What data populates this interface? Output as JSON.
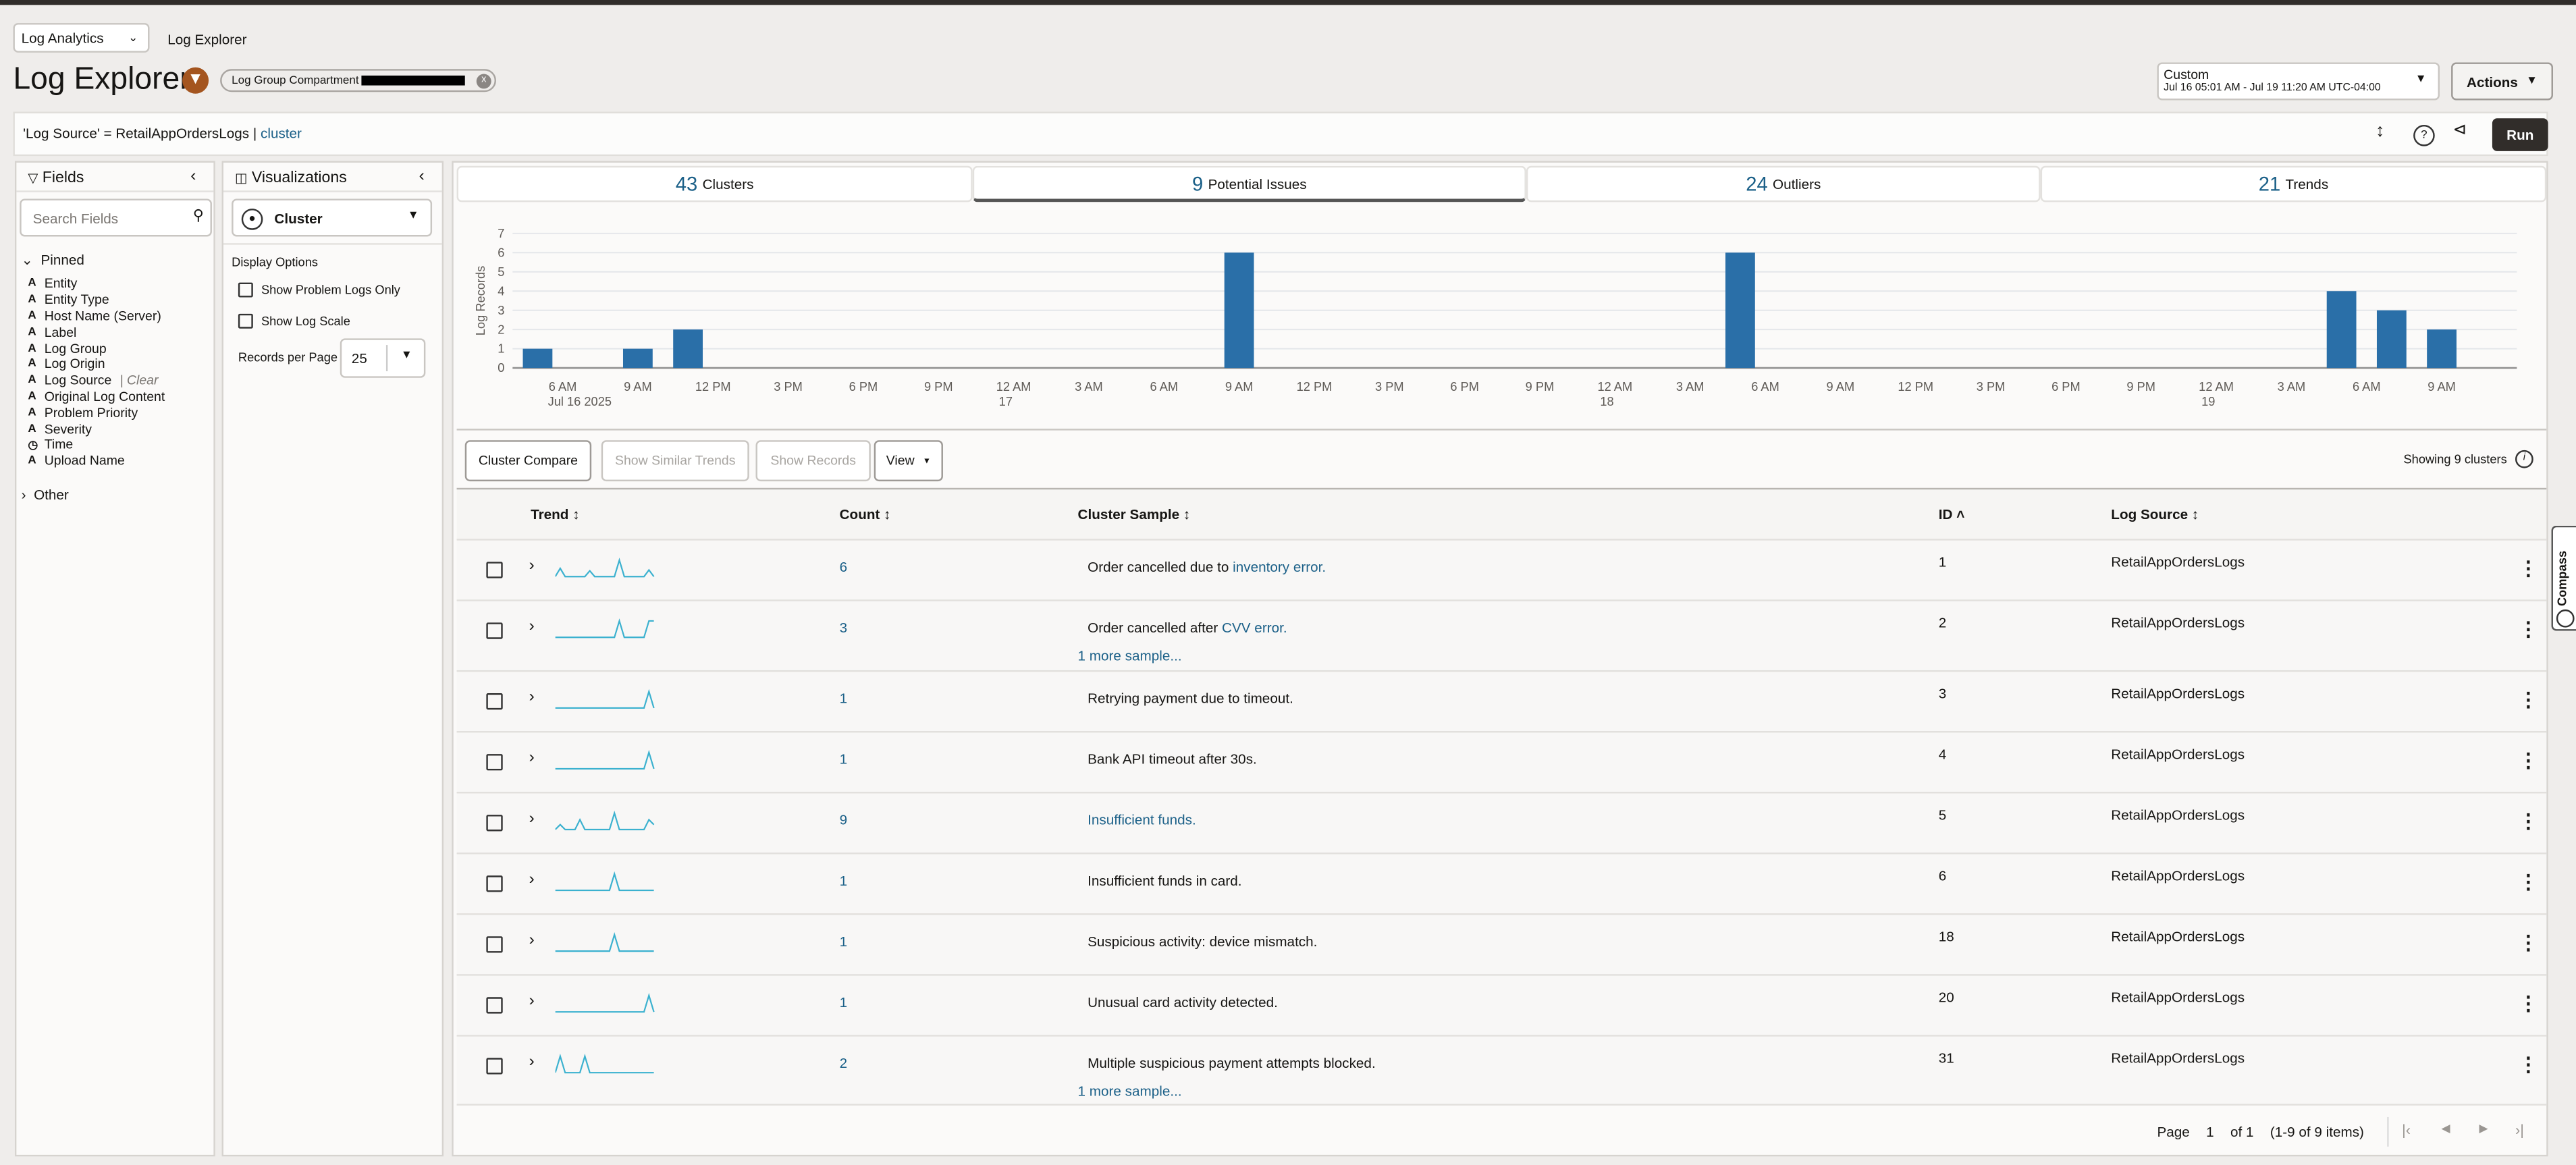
{
  "breadcrumb": {
    "app": "Log Analytics",
    "page": "Log Explorer"
  },
  "header": {
    "title": "Log Explorer",
    "chip_label": "Log Group Compartment"
  },
  "time_range": {
    "label": "Custom",
    "range": "Jul 16 05:01 AM - Jul 19 11:20 AM UTC-04:00"
  },
  "actions_label": "Actions",
  "query": {
    "text": "'Log Source' = RetailAppOrdersLogs | ",
    "command": "cluster"
  },
  "run_label": "Run",
  "fields": {
    "title": "Fields",
    "search_placeholder": "Search Fields",
    "pinned_label": "Pinned",
    "other_label": "Other",
    "clear_label": "| Clear",
    "items": [
      {
        "type": "A",
        "name": "Entity"
      },
      {
        "type": "A",
        "name": "Entity Type"
      },
      {
        "type": "A",
        "name": "Host Name (Server)"
      },
      {
        "type": "A",
        "name": "Label"
      },
      {
        "type": "A",
        "name": "Log Group"
      },
      {
        "type": "A",
        "name": "Log Origin"
      },
      {
        "type": "A",
        "name": "Log Source"
      },
      {
        "type": "A",
        "name": "Original Log Content"
      },
      {
        "type": "A",
        "name": "Problem Priority"
      },
      {
        "type": "A",
        "name": "Severity"
      },
      {
        "type": "clock",
        "name": "Time"
      },
      {
        "type": "A",
        "name": "Upload Name"
      }
    ]
  },
  "viz": {
    "title": "Visualizations",
    "selected": "Cluster",
    "display_options": "Display Options",
    "opt1": "Show Problem Logs Only",
    "opt2": "Show Log Scale",
    "records_label": "Records per Page",
    "records_value": "25"
  },
  "tabs": [
    {
      "count": "43",
      "label": "Clusters"
    },
    {
      "count": "9",
      "label": "Potential Issues"
    },
    {
      "count": "24",
      "label": "Outliers"
    },
    {
      "count": "21",
      "label": "Trends"
    }
  ],
  "chart_data": {
    "type": "bar",
    "ylabel": "Log Records",
    "ylim": [
      0,
      7
    ],
    "yticks": [
      "0",
      "1",
      "2",
      "3",
      "4",
      "5",
      "6",
      "7"
    ],
    "x_start": "Jul 16 2025 04:00",
    "x_range_hours": [
      0,
      80
    ],
    "xticks": [
      {
        "h": 2,
        "l": "6 AM",
        "s": "Jul 16 2025"
      },
      {
        "h": 5,
        "l": "9 AM"
      },
      {
        "h": 8,
        "l": "12 PM"
      },
      {
        "h": 11,
        "l": "3 PM"
      },
      {
        "h": 14,
        "l": "6 PM"
      },
      {
        "h": 17,
        "l": "9 PM"
      },
      {
        "h": 20,
        "l": "12 AM",
        "s": "17"
      },
      {
        "h": 23,
        "l": "3 AM"
      },
      {
        "h": 26,
        "l": "6 AM"
      },
      {
        "h": 29,
        "l": "9 AM"
      },
      {
        "h": 32,
        "l": "12 PM"
      },
      {
        "h": 35,
        "l": "3 PM"
      },
      {
        "h": 38,
        "l": "6 PM"
      },
      {
        "h": 41,
        "l": "9 PM"
      },
      {
        "h": 44,
        "l": "12 AM",
        "s": "18"
      },
      {
        "h": 47,
        "l": "3 AM"
      },
      {
        "h": 50,
        "l": "6 AM"
      },
      {
        "h": 53,
        "l": "9 AM"
      },
      {
        "h": 56,
        "l": "12 PM"
      },
      {
        "h": 59,
        "l": "3 PM"
      },
      {
        "h": 62,
        "l": "6 PM"
      },
      {
        "h": 65,
        "l": "9 PM"
      },
      {
        "h": 68,
        "l": "12 AM",
        "s": "19"
      },
      {
        "h": 71,
        "l": "3 AM"
      },
      {
        "h": 74,
        "l": "6 AM"
      },
      {
        "h": 77,
        "l": "9 AM"
      }
    ],
    "bars": [
      {
        "h": 1,
        "v": 1
      },
      {
        "h": 5,
        "v": 1
      },
      {
        "h": 7,
        "v": 2
      },
      {
        "h": 29,
        "v": 6
      },
      {
        "h": 49,
        "v": 6
      },
      {
        "h": 73,
        "v": 4
      },
      {
        "h": 75,
        "v": 3
      },
      {
        "h": 77,
        "v": 2
      }
    ],
    "color": "#2a6fa8"
  },
  "toolbar": {
    "cluster_compare": "Cluster Compare",
    "similar": "Show Similar Trends",
    "records": "Show Records",
    "view": "View",
    "showing": "Showing 9 clusters"
  },
  "columns": {
    "trend": "Trend",
    "count": "Count",
    "sample": "Cluster Sample",
    "id": "ID",
    "source": "Log Source"
  },
  "rows": [
    {
      "count": "6",
      "sample": "Order cancelled due to ",
      "sample_link": "inventory error.",
      "id": "1",
      "source": "RetailAppOrdersLogs",
      "trend": [
        0,
        0.5,
        0,
        0,
        0,
        0,
        0,
        0.35,
        0,
        0,
        0,
        0,
        0,
        1,
        0,
        0,
        0,
        0,
        0,
        0.4,
        0
      ]
    },
    {
      "count": "3",
      "sample": "Order cancelled after ",
      "sample_link": "CVV error.",
      "more": "1 more sample...",
      "id": "2",
      "source": "RetailAppOrdersLogs",
      "trend": [
        0,
        0,
        0,
        0,
        0,
        0,
        0,
        0,
        0,
        0,
        0,
        0,
        0,
        1,
        0,
        0,
        0,
        0,
        0,
        1,
        1
      ]
    },
    {
      "count": "1",
      "sample": "Retrying payment due to timeout.",
      "id": "3",
      "source": "RetailAppOrdersLogs",
      "trend": [
        0,
        0,
        0,
        0,
        0,
        0,
        0,
        0,
        0,
        0,
        0,
        0,
        0,
        0,
        0,
        0,
        0,
        0,
        0,
        1,
        0
      ]
    },
    {
      "count": "1",
      "sample": "Bank API timeout after 30s.",
      "id": "4",
      "source": "RetailAppOrdersLogs",
      "trend": [
        0,
        0,
        0,
        0,
        0,
        0,
        0,
        0,
        0,
        0,
        0,
        0,
        0,
        0,
        0,
        0,
        0,
        0,
        0,
        1,
        0
      ]
    },
    {
      "count": "9",
      "sample": "",
      "sample_link": "Insufficient funds.",
      "id": "5",
      "source": "RetailAppOrdersLogs",
      "trend": [
        0,
        0.3,
        0,
        0,
        0,
        0.6,
        0,
        0,
        0,
        0,
        0,
        0,
        1,
        0,
        0,
        0,
        0,
        0,
        0,
        0.6,
        0.3
      ]
    },
    {
      "count": "1",
      "sample": "Insufficient funds in card.",
      "id": "6",
      "source": "RetailAppOrdersLogs",
      "trend": [
        0,
        0,
        0,
        0,
        0,
        0,
        0,
        0,
        0,
        0,
        0,
        0,
        1,
        0,
        0,
        0,
        0,
        0,
        0,
        0,
        0
      ]
    },
    {
      "count": "1",
      "sample": "Suspicious activity: device mismatch.",
      "id": "18",
      "source": "RetailAppOrdersLogs",
      "trend": [
        0,
        0,
        0,
        0,
        0,
        0,
        0,
        0,
        0,
        0,
        0,
        0,
        1,
        0,
        0,
        0,
        0,
        0,
        0,
        0,
        0
      ]
    },
    {
      "count": "1",
      "sample": "Unusual card activity detected.",
      "id": "20",
      "source": "RetailAppOrdersLogs",
      "trend": [
        0,
        0,
        0,
        0,
        0,
        0,
        0,
        0,
        0,
        0,
        0,
        0,
        0,
        0,
        0,
        0,
        0,
        0,
        0,
        1,
        0
      ]
    },
    {
      "count": "2",
      "sample": "Multiple suspicious payment attempts blocked.",
      "more": "1 more sample...",
      "id": "31",
      "source": "RetailAppOrdersLogs",
      "trend": [
        0,
        1,
        0,
        0,
        0,
        0,
        1,
        0,
        0,
        0,
        0,
        0,
        0,
        0,
        0,
        0,
        0,
        0,
        0,
        0,
        0
      ]
    }
  ],
  "pagination": {
    "page_label": "Page",
    "page": "1",
    "of": "of 1",
    "items": "(1-9 of 9 items)"
  },
  "compass_label": "Compass"
}
